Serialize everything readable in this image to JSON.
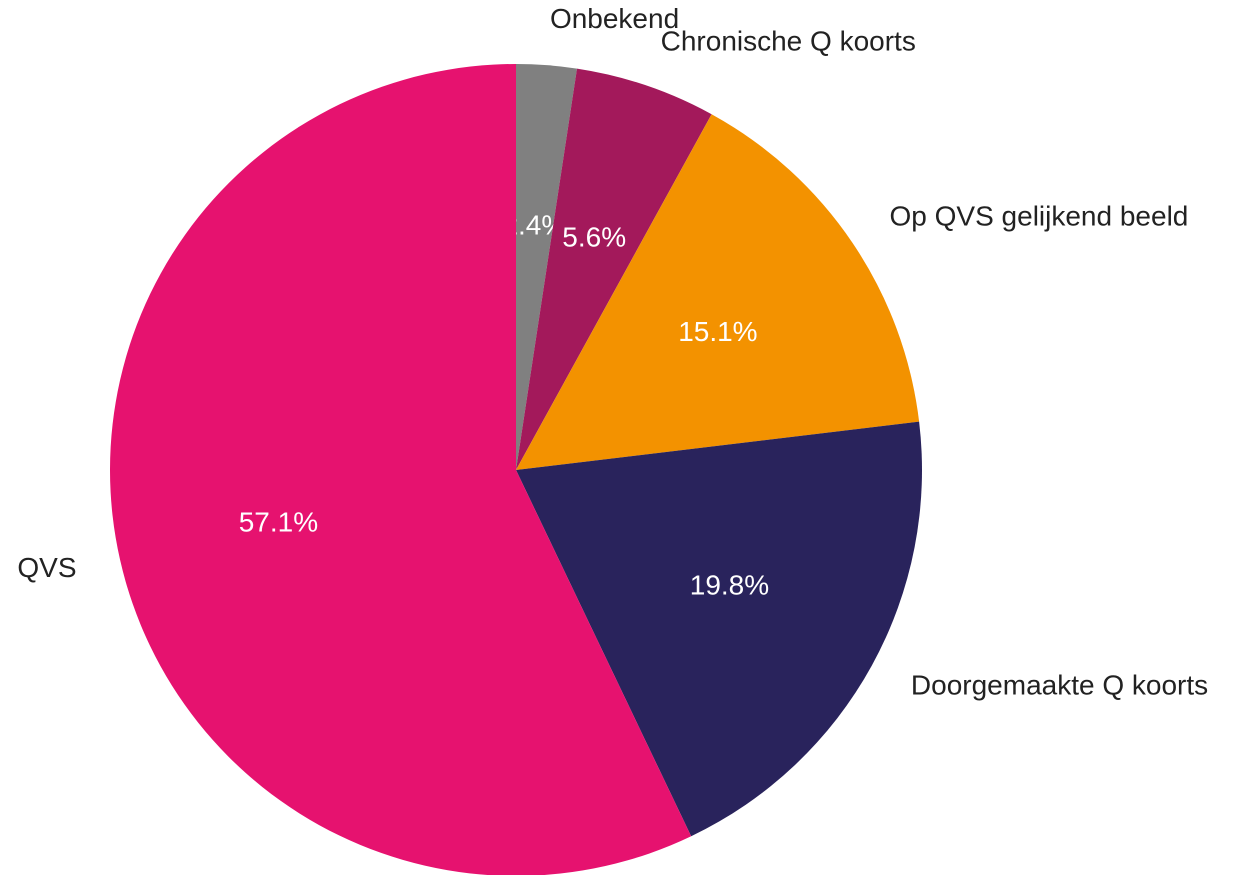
{
  "chart_data": {
    "type": "pie",
    "categories": [
      "Onbekend",
      "Chronische Q koorts",
      "Op QVS gelijkend beeld",
      "Doorgemaakte Q koorts",
      "QVS"
    ],
    "values": [
      2.4,
      5.6,
      15.1,
      19.8,
      57.1
    ],
    "value_labels": [
      "2.4%",
      "5.6%",
      "15.1%",
      "19.8%",
      "57.1%"
    ],
    "colors": [
      "#808080",
      "#a3195b",
      "#f39200",
      "#29235c",
      "#e6126f"
    ]
  }
}
